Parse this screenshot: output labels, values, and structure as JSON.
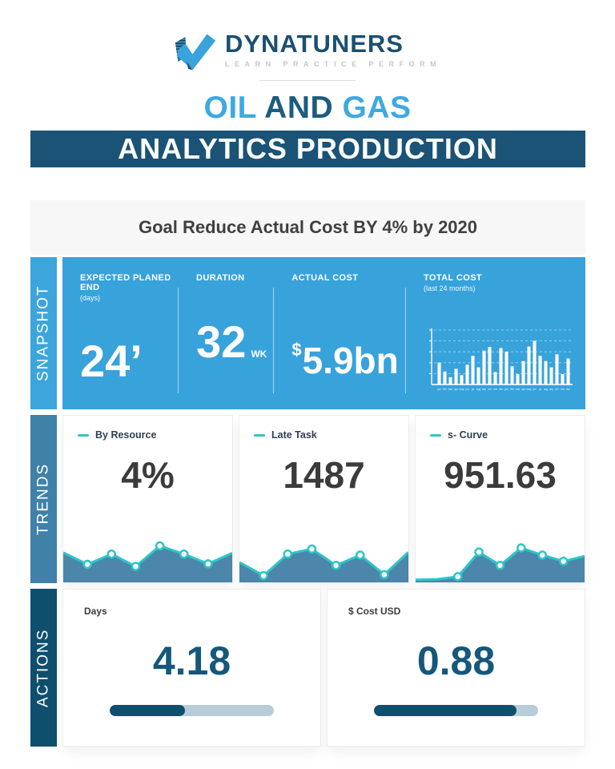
{
  "logo": {
    "name": "DYNATUNERS",
    "tagline": "LEARN PRACTICE PERFORM"
  },
  "title": {
    "part1": "OIL",
    "part2": " AND ",
    "part3": "GAS",
    "banner": "ANALYTICS PRODUCTION"
  },
  "goal": {
    "text": "Goal Reduce Actual Cost BY 4% by 2020"
  },
  "sections": {
    "snapshot": "SNAPSHOT",
    "trends": "TRENDS",
    "actions": "ACTIONS"
  },
  "snapshot": {
    "columns": [
      {
        "label": "EXPECTED PLANED END",
        "sublabel": "(days)",
        "value": "24’"
      },
      {
        "label": "DURATION",
        "value": "32",
        "unit": "WK"
      },
      {
        "label": "ACTUAL COST",
        "prefix": "$",
        "value": "5.9bn"
      },
      {
        "label": "TOTAL COST",
        "sublabel": "(last 24 months)"
      }
    ]
  },
  "trends": {
    "cards": [
      {
        "label": "By Resource",
        "value": "4%"
      },
      {
        "label": "Late Task",
        "value": "1487"
      },
      {
        "label": "s- Curve",
        "value": "951.63"
      }
    ]
  },
  "actions": {
    "cards": [
      {
        "label": "Days",
        "value": "4.18"
      },
      {
        "label": "$ Cost USD",
        "value": "0.88"
      }
    ]
  },
  "colors": {
    "brand_dark": "#1b4f72",
    "light_blue": "#3fa9e1",
    "banner_teal": "#1a5376",
    "snapshot_blue": "#38a2db",
    "trends_steel": "#3f81a9",
    "actions_navy": "#0e4f6e",
    "spark_line": "#2ec5c8",
    "spark_fill": "#4c86ab",
    "progress_fill": "#0e4f6e",
    "progress_track": "#b8cdd9",
    "bar_color": "#ffffff"
  },
  "chart_data": [
    {
      "id": "total_cost",
      "type": "bar",
      "title": "TOTAL COST",
      "subtitle": "(last 24 months)",
      "categories": [
        "jan",
        "feb",
        "mar",
        "apr",
        "may",
        "jun",
        "jul",
        "aug",
        "sep",
        "oct",
        "nov",
        "dec",
        "jan",
        "feb",
        "mar",
        "apr",
        "may",
        "jun",
        "jul",
        "aug",
        "sep",
        "oct",
        "nov",
        "dec"
      ],
      "values": [
        42,
        25,
        14,
        30,
        18,
        38,
        55,
        33,
        65,
        72,
        24,
        70,
        63,
        35,
        20,
        45,
        73,
        84,
        55,
        45,
        33,
        58,
        20,
        50
      ],
      "xlabel": "",
      "ylabel": "",
      "ylim": [
        0,
        100
      ],
      "grid": true,
      "gridlines": [
        20,
        40,
        60,
        80,
        100
      ],
      "bar_color": "#ffffff",
      "legend_position": "none"
    },
    {
      "id": "by_resource",
      "type": "area",
      "title": "By Resource",
      "values": [
        55,
        32,
        52,
        28,
        68,
        52,
        33,
        54
      ],
      "markers": [
        1,
        2,
        3,
        4,
        5,
        6
      ],
      "ylim": [
        0,
        100
      ],
      "line_color": "#2ec5c8",
      "fill_color": "#4c86ab"
    },
    {
      "id": "late_task",
      "type": "area",
      "title": "Late Task",
      "values": [
        36,
        10,
        52,
        62,
        30,
        50,
        12,
        56
      ],
      "markers": [
        1,
        2,
        3,
        4,
        5,
        6
      ],
      "ylim": [
        0,
        100
      ],
      "line_color": "#2ec5c8",
      "fill_color": "#4c86ab"
    },
    {
      "id": "s_curve",
      "type": "area",
      "title": "s- Curve",
      "values": [
        2,
        3,
        8,
        56,
        30,
        64,
        50,
        38,
        48
      ],
      "markers": [
        2,
        3,
        4,
        5,
        6,
        7
      ],
      "ylim": [
        0,
        100
      ],
      "line_color": "#2ec5c8",
      "fill_color": "#4c86ab"
    },
    {
      "id": "days_progress",
      "type": "progress",
      "title": "Days",
      "value": 4.18,
      "pct": 46
    },
    {
      "id": "cost_progress",
      "type": "progress",
      "title": "$ Cost USD",
      "value": 0.88,
      "pct": 87
    }
  ]
}
